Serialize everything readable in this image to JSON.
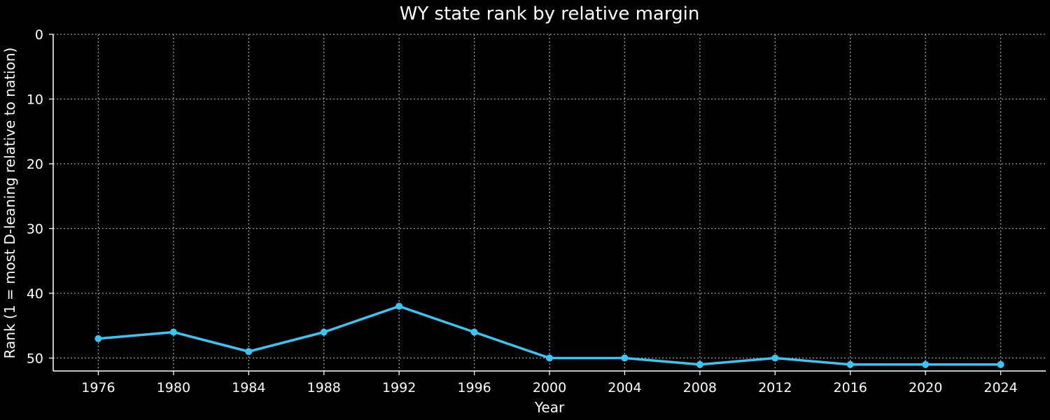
{
  "chart_data": {
    "type": "line",
    "title": "WY state rank by relative margin",
    "xlabel": "Year",
    "ylabel": "Rank (1 = most D-leaning relative to nation)",
    "x": [
      1976,
      1980,
      1984,
      1988,
      1992,
      1996,
      2000,
      2004,
      2008,
      2012,
      2016,
      2020,
      2024
    ],
    "series": [
      {
        "values": [
          47,
          46,
          49,
          46,
          42,
          46,
          50,
          50,
          51,
          50,
          51,
          51,
          51
        ]
      }
    ],
    "xlim": [
      1973.6,
      2026.4
    ],
    "ylim": [
      52,
      0
    ],
    "y_inverted": true,
    "xticks": [
      1976,
      1980,
      1984,
      1988,
      1992,
      1996,
      2000,
      2004,
      2008,
      2012,
      2016,
      2020,
      2024
    ],
    "yticks": [
      0,
      10,
      20,
      30,
      40,
      50
    ],
    "grid": true,
    "colors": {
      "background": "#000000",
      "line": "#38c6f4",
      "axis": "#ffffff",
      "grid": "#9a9a9a"
    }
  }
}
